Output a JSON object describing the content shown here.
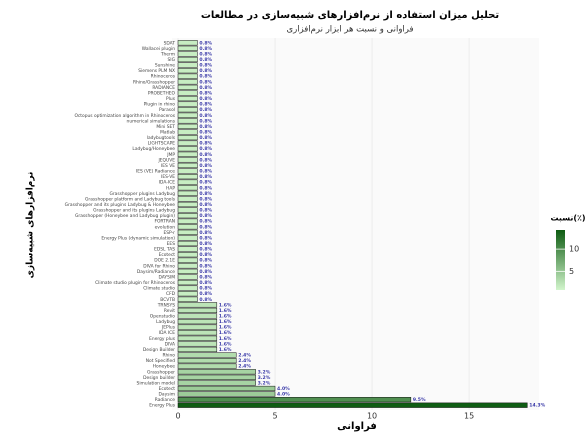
{
  "chart_data": {
    "type": "barh",
    "title": "تحلیل میزان استفاده از نرم‌افزارهای شبیه‌سازی در مطالعات",
    "subtitle": "فراوانی و نسبت هر ابزار نرم‌افزاری",
    "x_label": "فراوانی",
    "y_label": "نرم‌افزارهای شبیه‌سازی",
    "categories": [
      "SDAT",
      "Wallacei plugin",
      "Therm",
      "SIG",
      "Sunshine",
      "Siemens PLM NX",
      "Rhinoceros",
      "Rhino/Grasshopper",
      "RADIANCE",
      "PROBETHEO",
      "Plus",
      "Plugin in rhino",
      "Parasol",
      "Octopus optimization algorithm in Rhinoceros",
      "numerical simulations",
      "Mini SET",
      "Matlab",
      "ladybugtools",
      "LIGHTSCAPE",
      "Ladybug/Honeybee",
      "JMP",
      "JEQUVE",
      "IES VE",
      "IES (VE) Radiance",
      "IES-VE",
      "IDA-ICE",
      "HAP",
      "Grasshopper plugins Ladybug",
      "Grasshopper platform and Ladybug tools",
      "Grasshopper and its plugins Ladybug & Honeybee",
      "Grasshopper and its plugins Ladybug",
      "Grasshopper (Honeybee and Ladybug plugin)",
      "FORTRAN",
      "evolution",
      "ESP-r",
      "Energy Plus (dynamic simulation)",
      "EES",
      "EDSL TAS",
      "Ecotect",
      "DOE 2.1E",
      "DIVA for Rhino",
      "Daysim/Radiance",
      "DAYSIM",
      "Climate studio plugin for Rhinoceros",
      "Climate studio",
      "CFD",
      "BCVTB",
      "TRNSYS",
      "Revit",
      "Openstudio",
      "Ladybug",
      "JEPlus",
      "IDA ICE",
      "Energy plus",
      "DIVA",
      "Design Builder",
      "Rhino",
      "Not Specified",
      "Honeybee",
      "Grasshopper",
      "Design builder",
      "Simulation model",
      "Ecotect",
      "Daysim",
      "Radiance",
      "Energy Plus"
    ],
    "values": [
      1,
      1,
      1,
      1,
      1,
      1,
      1,
      1,
      1,
      1,
      1,
      1,
      1,
      1,
      1,
      1,
      1,
      1,
      1,
      1,
      1,
      1,
      1,
      1,
      1,
      1,
      1,
      1,
      1,
      1,
      1,
      1,
      1,
      1,
      1,
      1,
      1,
      1,
      1,
      1,
      1,
      1,
      1,
      1,
      1,
      1,
      1,
      2,
      2,
      2,
      2,
      2,
      2,
      2,
      2,
      2,
      3,
      3,
      3,
      4,
      4,
      4,
      5,
      5,
      12,
      18
    ],
    "value_labels": [
      "0.8%",
      "0.8%",
      "0.8%",
      "0.8%",
      "0.8%",
      "0.8%",
      "0.8%",
      "0.8%",
      "0.8%",
      "0.8%",
      "0.8%",
      "0.8%",
      "0.8%",
      "0.8%",
      "0.8%",
      "0.8%",
      "0.8%",
      "0.8%",
      "0.8%",
      "0.8%",
      "0.8%",
      "0.8%",
      "0.8%",
      "0.8%",
      "0.8%",
      "0.8%",
      "0.8%",
      "0.8%",
      "0.8%",
      "0.8%",
      "0.8%",
      "0.8%",
      "0.8%",
      "0.8%",
      "0.8%",
      "0.8%",
      "0.8%",
      "0.8%",
      "0.8%",
      "0.8%",
      "0.8%",
      "0.8%",
      "0.8%",
      "0.8%",
      "0.8%",
      "0.8%",
      "0.8%",
      "1.6%",
      "1.6%",
      "1.6%",
      "1.6%",
      "1.6%",
      "1.6%",
      "1.6%",
      "1.6%",
      "1.6%",
      "2.4%",
      "2.4%",
      "2.4%",
      "3.2%",
      "3.2%",
      "3.2%",
      "4.0%",
      "4.0%",
      "9.5%",
      "14.3%"
    ],
    "xlim": [
      0,
      18.5
    ],
    "xticks": [
      0,
      5,
      10,
      15
    ],
    "grid": true,
    "colors": [
      "#d2f5cc",
      "#0e5c12"
    ],
    "colorbar": {
      "title": "نسبت(٪)",
      "lim": [
        0.8,
        14.3
      ],
      "ticks": [
        5,
        10
      ]
    }
  }
}
